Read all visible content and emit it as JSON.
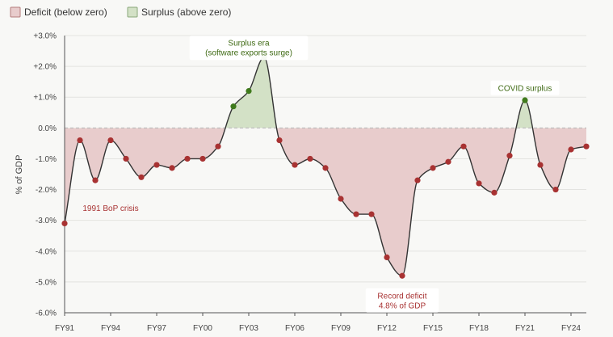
{
  "legend": [
    {
      "label": "Deficit (below zero)",
      "fill": "#e8cccc",
      "stroke": "#b47b7b"
    },
    {
      "label": "Surplus (above zero)",
      "fill": "#d3e1c6",
      "stroke": "#8aa77a"
    }
  ],
  "colors": {
    "line": "#333333",
    "deficit_point": "#a83232",
    "surplus_point": "#3f7a1c",
    "deficit_fill": "#e8cccc",
    "surplus_fill": "#d3e1c6",
    "zero_line": "#bbbbbb",
    "grid": "#e3e3e0",
    "deficit_text": "#a83232",
    "surplus_text": "#3f6a14"
  },
  "chart_data": {
    "type": "area",
    "title": "",
    "xlabel": "",
    "ylabel": "% of GDP",
    "x": [
      "FY91",
      "FY92",
      "FY93",
      "FY94",
      "FY95",
      "FY96",
      "FY97",
      "FY98",
      "FY99",
      "FY00",
      "FY01",
      "FY02",
      "FY03",
      "FY04",
      "FY05",
      "FY06",
      "FY07",
      "FY08",
      "FY09",
      "FY10",
      "FY11",
      "FY12",
      "FY13",
      "FY14",
      "FY15",
      "FY16",
      "FY17",
      "FY18",
      "FY19",
      "FY20",
      "FY21",
      "FY22",
      "FY23",
      "FY24",
      "FY25"
    ],
    "series": [
      {
        "values": [
          -3.1,
          -0.4,
          -1.7,
          -0.4,
          -1.0,
          -1.6,
          -1.2,
          -1.3,
          -1.0,
          -1.0,
          -0.6,
          0.7,
          1.2,
          2.3,
          -0.4,
          -1.2,
          -1.0,
          -1.3,
          -2.3,
          -2.8,
          -2.8,
          -4.2,
          -4.8,
          -1.7,
          -1.3,
          -1.1,
          -0.6,
          -1.8,
          -2.1,
          -0.9,
          0.9,
          -1.2,
          -2.0,
          -0.7,
          -0.6
        ]
      }
    ],
    "x_tick_labels": [
      "FY91",
      "FY94",
      "FY97",
      "FY00",
      "FY03",
      "FY06",
      "FY09",
      "FY12",
      "FY15",
      "FY18",
      "FY21",
      "FY24"
    ],
    "y_tick_labels": [
      "+3.0%",
      "+2.0%",
      "+1.0%",
      "0.0%",
      "-1.0%",
      "-2.0%",
      "-3.0%",
      "-4.0%",
      "-5.0%",
      "-6.0%"
    ],
    "y_ticks": [
      3,
      2,
      1,
      0,
      -1,
      -2,
      -3,
      -4,
      -5,
      -6
    ],
    "ylim": [
      -6,
      3
    ],
    "grid": true,
    "legend_position": "top-left",
    "annotations": [
      {
        "lines": [
          "1991 BoP crisis"
        ],
        "kind": "deficit",
        "boxed": false,
        "at": "FY94",
        "y": -2.6
      },
      {
        "lines": [
          "Surplus era",
          "(software exports surge)"
        ],
        "kind": "surplus",
        "boxed": true,
        "at": "FY03",
        "y": 2.6
      },
      {
        "lines": [
          "Record deficit",
          "4.8% of GDP"
        ],
        "kind": "deficit",
        "boxed": true,
        "at": "FY13",
        "y": -5.6
      },
      {
        "lines": [
          "COVID surplus"
        ],
        "kind": "surplus",
        "boxed": true,
        "at": "FY21",
        "y": 1.3
      }
    ]
  }
}
